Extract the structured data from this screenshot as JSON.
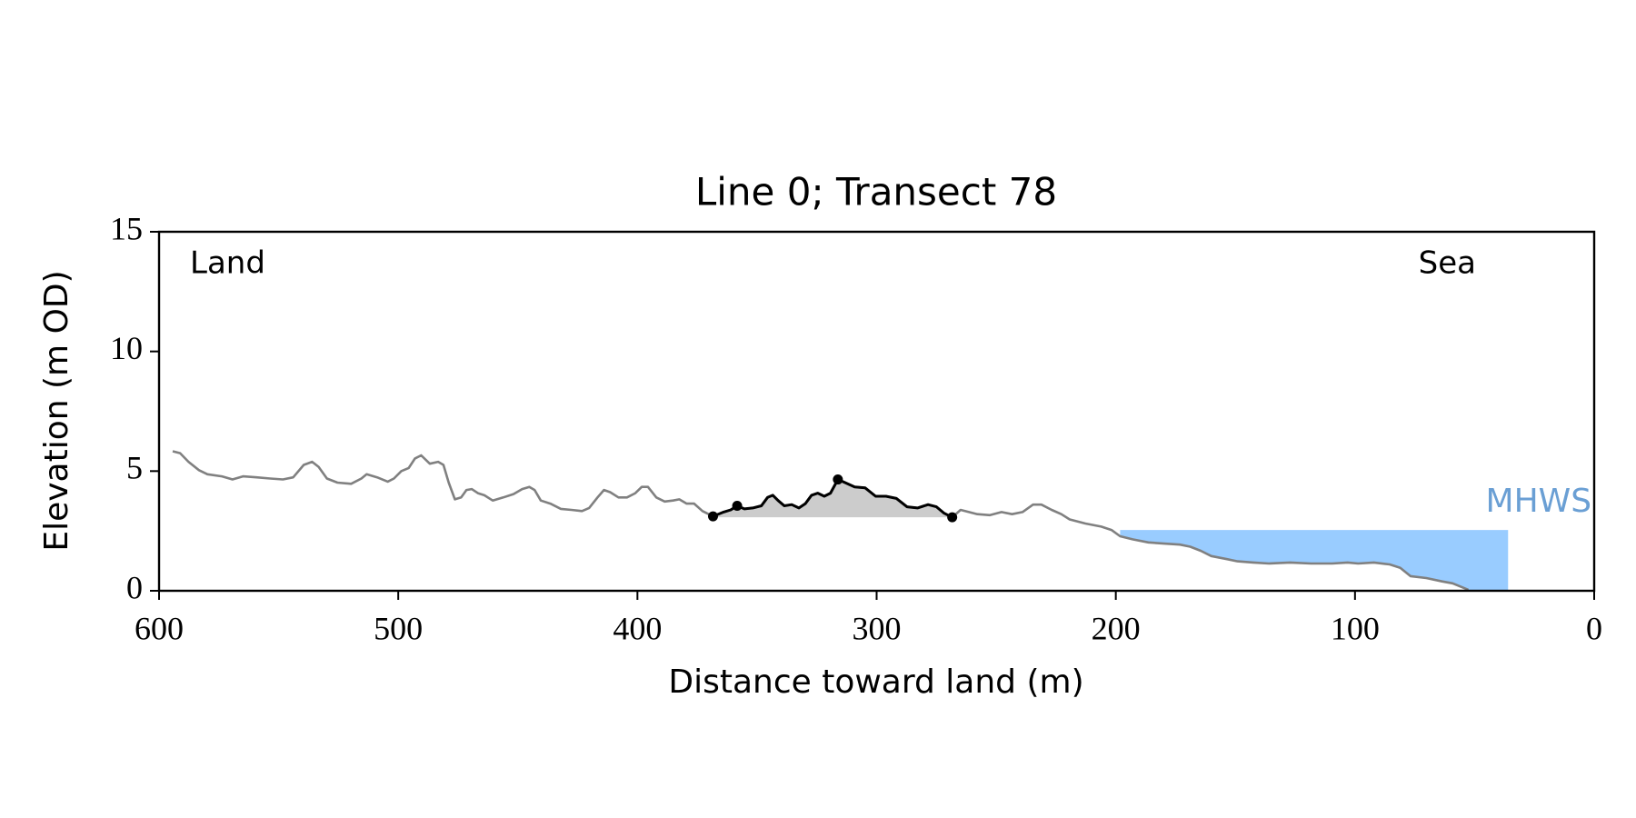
{
  "chart_data": {
    "type": "line",
    "title": "Line 0; Transect 78",
    "xlabel": "Distance toward land (m)",
    "ylabel": "Elevation (m OD)",
    "xlim": [
      600,
      0
    ],
    "ylim": [
      0,
      15
    ],
    "xticks": [
      600,
      500,
      400,
      300,
      200,
      100,
      0
    ],
    "yticks": [
      0,
      5,
      10,
      15
    ],
    "annotations": [
      "Land",
      "Sea"
    ],
    "series": [
      {
        "color": "#808080",
        "x": [
          594.3,
          591.2,
          587.7,
          583.3,
          579.8,
          573.7,
          569.3,
          564.9,
          559.2,
          553.5,
          548.2,
          543.9,
          539.5,
          536.0,
          533.3,
          529.8,
          525.4,
          519.7,
          515.4,
          513.2,
          508.8,
          504.4,
          501.8,
          498.7,
          495.6,
          493.0,
          490.4,
          486.8,
          483.3,
          481.1,
          478.9,
          476.3,
          473.7,
          471.5,
          469.3,
          466.7,
          464.0,
          460.5,
          456.1,
          451.8,
          448.2,
          445.2,
          443.0,
          440.4,
          436.4,
          432.0,
          427.6,
          423.2,
          420.2,
          416.7,
          414.0,
          411.4,
          407.9,
          404.4,
          400.9,
          398.2,
          395.6,
          392.1,
          388.6,
          385.1,
          382.5,
          379.4,
          376.3,
          372.8,
          368.4,
          364.0,
          361.0,
          358.3,
          355.3,
          351.8,
          348.2,
          345.6,
          343.4,
          341.2,
          338.6,
          335.5,
          332.5,
          329.8,
          327.2,
          324.6,
          321.9,
          319.3,
          316.2,
          313.2,
          309.2,
          304.8,
          300.4,
          296.1,
          291.7,
          287.3,
          282.9,
          278.5,
          275.0,
          271.9,
          268.4,
          264.9,
          261.4,
          257.9,
          252.6,
          247.8,
          243.4,
          239.0,
          234.6,
          231.1,
          226.8,
          222.8,
          219.3,
          212.7,
          206.1,
          201.8,
          198.2,
          193.0,
          186.4,
          179.8,
          173.2,
          168.9,
          164.5,
          160.1,
          153.5,
          149.1,
          142.5,
          136.0,
          127.2,
          118.4,
          109.6,
          103.1,
          98.7,
          92.1,
          85.5,
          81.1,
          76.8,
          70.2,
          63.6,
          59.2,
          54.8,
          52.6
        ],
        "values": [
          5.83,
          5.75,
          5.39,
          5.04,
          4.87,
          4.78,
          4.65,
          4.78,
          4.74,
          4.69,
          4.65,
          4.74,
          5.26,
          5.39,
          5.18,
          4.69,
          4.52,
          4.47,
          4.69,
          4.87,
          4.74,
          4.56,
          4.69,
          5.0,
          5.13,
          5.53,
          5.66,
          5.31,
          5.39,
          5.26,
          4.52,
          3.82,
          3.9,
          4.21,
          4.25,
          4.08,
          3.99,
          3.77,
          3.9,
          4.04,
          4.25,
          4.34,
          4.21,
          3.77,
          3.64,
          3.42,
          3.38,
          3.33,
          3.46,
          3.9,
          4.21,
          4.12,
          3.9,
          3.9,
          4.08,
          4.34,
          4.34,
          3.9,
          3.73,
          3.77,
          3.82,
          3.64,
          3.64,
          3.33,
          3.11,
          3.29,
          3.38,
          3.55,
          3.42,
          3.46,
          3.55,
          3.9,
          3.99,
          3.77,
          3.55,
          3.6,
          3.46,
          3.64,
          3.99,
          4.08,
          3.95,
          4.08,
          4.65,
          4.52,
          4.34,
          4.3,
          3.95,
          3.95,
          3.86,
          3.51,
          3.46,
          3.6,
          3.51,
          3.25,
          3.07,
          3.38,
          3.29,
          3.2,
          3.16,
          3.29,
          3.2,
          3.29,
          3.6,
          3.6,
          3.38,
          3.2,
          2.98,
          2.81,
          2.68,
          2.54,
          2.28,
          2.15,
          2.02,
          1.97,
          1.93,
          1.84,
          1.67,
          1.45,
          1.32,
          1.23,
          1.18,
          1.14,
          1.18,
          1.14,
          1.14,
          1.18,
          1.14,
          1.18,
          1.1,
          0.96,
          0.61,
          0.53,
          0.39,
          0.31,
          0.13,
          0.04
        ]
      },
      {
        "color": "#000000",
        "fill_color": "#cccccc",
        "x": [
          368.4,
          364.0,
          361.0,
          358.3,
          355.3,
          351.8,
          348.2,
          345.6,
          343.4,
          341.2,
          338.6,
          335.5,
          332.5,
          329.8,
          327.2,
          324.6,
          321.9,
          319.3,
          316.2,
          313.2,
          309.2,
          304.8,
          300.4,
          296.1,
          291.7,
          287.3,
          282.9,
          278.5,
          275.0,
          271.9,
          268.4
        ],
        "values": [
          3.11,
          3.29,
          3.38,
          3.55,
          3.42,
          3.46,
          3.55,
          3.9,
          3.99,
          3.77,
          3.55,
          3.6,
          3.46,
          3.64,
          3.99,
          4.08,
          3.95,
          4.08,
          4.65,
          4.52,
          4.34,
          4.3,
          3.95,
          3.95,
          3.86,
          3.51,
          3.46,
          3.6,
          3.51,
          3.25,
          3.07
        ]
      }
    ],
    "markers": {
      "color": "#000000",
      "x": [
        368.4,
        358.3,
        316.2,
        268.4
      ],
      "values": [
        3.11,
        3.55,
        4.65,
        3.07
      ]
    },
    "mhws": {
      "label": "MHWS",
      "value": 2.54,
      "xlim": [
        198.2,
        36.0
      ],
      "color": "#99ccff",
      "label_color": "#6a9fd4"
    }
  }
}
